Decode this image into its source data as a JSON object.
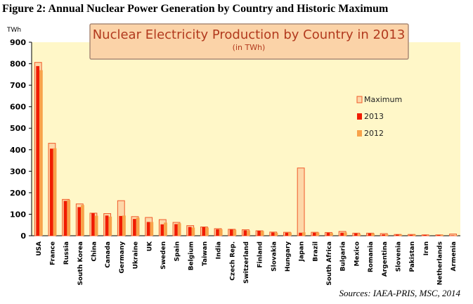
{
  "figure_caption": "Figure 2: Annual Nuclear Power Generation by Country and Historic Maximum",
  "source": "Sources: IAEA-PRIS, MSC, 2014",
  "colors": {
    "plot_bg": "#fff7c8",
    "title_box_bg": "#fbd3a8",
    "title_box_border": "#aa8a76",
    "title_text": "#b23a1e",
    "maximum_fill": "#fdd7a8",
    "maximum_stroke": "#f05a2a",
    "series_2013": "#f01c00",
    "series_2012": "#f8a24a"
  },
  "chart_data": {
    "type": "bar",
    "title": "Nuclear Electricity Production by Country in 2013",
    "subtitle": "(in TWh)",
    "ylabel": "TWh",
    "ylim": [
      0,
      900
    ],
    "yticks": [
      0,
      100,
      200,
      300,
      400,
      500,
      600,
      700,
      800,
      900
    ],
    "grid": false,
    "legend_position": "right",
    "categories": [
      "USA",
      "France",
      "Russia",
      "South Korea",
      "China",
      "Canada",
      "Germany",
      "Ukraine",
      "UK",
      "Sweden",
      "Spain",
      "Belgium",
      "Taiwan",
      "India",
      "Czech Rep.",
      "Switzerland",
      "Finland",
      "Slovakia",
      "Hungary",
      "Japan",
      "Brazil",
      "South Africa",
      "Bulgaria",
      "Mexico",
      "Romania",
      "Argentina",
      "Slovenia",
      "Pakistan",
      "Iran",
      "Netherlands",
      "Armenia"
    ],
    "series": [
      {
        "name": "Maximum",
        "values": [
          806,
          430,
          169,
          148,
          105,
          103,
          163,
          89,
          85,
          75,
          62,
          47,
          41,
          33,
          30,
          28,
          23,
          17,
          16,
          315,
          16,
          15,
          20,
          12,
          12,
          10,
          6,
          6,
          4,
          4,
          8
        ]
      },
      {
        "name": "2013",
        "values": [
          789,
          405,
          162,
          133,
          105,
          94,
          92,
          78,
          64,
          53,
          54,
          41,
          40,
          30,
          29,
          25,
          23,
          15,
          14,
          14,
          14,
          14,
          14,
          11,
          11,
          6,
          5,
          4,
          4,
          3,
          2
        ]
      },
      {
        "name": "2012",
        "values": [
          770,
          407,
          166,
          143,
          93,
          89,
          94,
          84,
          64,
          61,
          58,
          38,
          38,
          30,
          28,
          24,
          22,
          14,
          15,
          16,
          15,
          12,
          15,
          8,
          11,
          6,
          5,
          5,
          1,
          4,
          2
        ]
      }
    ]
  }
}
